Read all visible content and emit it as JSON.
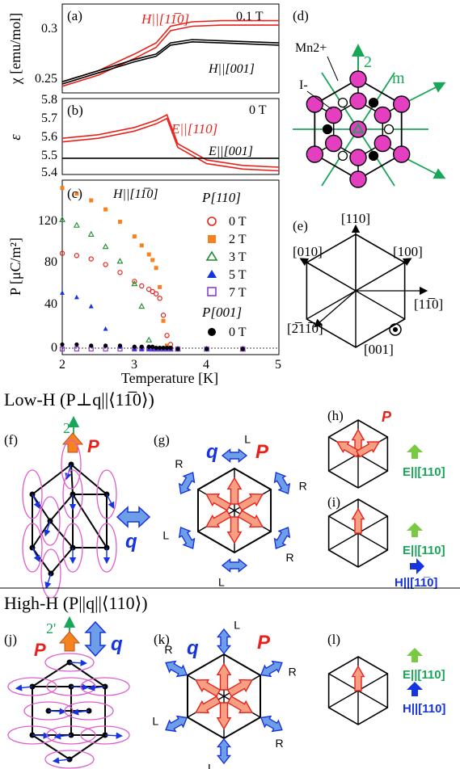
{
  "panels": {
    "a": {
      "label": "(a)",
      "field": "0.1 T",
      "h_inplane": "H||[11̅0]",
      "h_axis": "H||[001]",
      "ylabel": "χ [emu/mol]",
      "yticks": [
        "0.3",
        "0.25"
      ]
    },
    "b": {
      "label": "(b)",
      "field": "0 T",
      "e_inplane": "E||[110]",
      "e_axis": "E||[001]",
      "ylabel": "ε",
      "yticks": [
        "5.8",
        "5.7",
        "5.6",
        "5.5",
        "5.4"
      ]
    },
    "c": {
      "label": "(c)",
      "hdir": "H||[11̅0]",
      "ylabel": "P [μC/m²]",
      "yticks": [
        "120",
        "80",
        "40",
        "0"
      ],
      "xticks": [
        "2",
        "3",
        "4",
        "5"
      ],
      "xlabel": "Temperature [K]",
      "legend": {
        "p110": "P[110]",
        "p001": "P[001]",
        "entries": [
          "0 T",
          "2 T",
          "3 T",
          "5 T",
          "7 T"
        ],
        "entry001": "0 T"
      }
    },
    "d": {
      "label": "(d)",
      "mn": "Mn2+",
      "iodine": "I-",
      "two": "2",
      "m": "m"
    },
    "e": {
      "label": "(e)",
      "dirs": [
        "[110]",
        "[010]",
        "[100]",
        "[11̅0]",
        "[2̅11̅0]",
        "[001]"
      ]
    },
    "f": {
      "label": "(f)",
      "two": "2",
      "P": "P",
      "q": "q"
    },
    "g": {
      "label": "(g)",
      "q": "q",
      "P": "P",
      "handed": [
        "L",
        "R",
        "R",
        "L",
        "L",
        "R"
      ]
    },
    "h": {
      "label": "(h)",
      "P": "P",
      "E": "E||[110]"
    },
    "i": {
      "label": "(i)",
      "E": "E||[110]",
      "H": "H||[11̅0]"
    },
    "j": {
      "label": "(j)",
      "two": "2'",
      "P": "P",
      "q": "q"
    },
    "k": {
      "label": "(k)",
      "q": "q",
      "P": "P",
      "handed": [
        "L",
        "R",
        "R",
        "L",
        "L",
        "R"
      ]
    },
    "l": {
      "label": "(l)",
      "E": "E||[110]",
      "H": "H||[110]"
    }
  },
  "sections": {
    "low": "Low-H (P⊥q||⟨11̅0⟩)",
    "high": "High-H (P||q||⟨110⟩)"
  },
  "colors": {
    "red": "#e8221b",
    "orange": "#f5821f",
    "green": "#1c8b2e",
    "blue": "#1533e0",
    "purple": "#8a3ed6",
    "magenta": "#e43fc0",
    "teal": "#1aa659",
    "salmon": "#f79f83",
    "lightblue": "#6f9ee8"
  },
  "chart_data": [
    {
      "panel": "a",
      "type": "line",
      "ylabel": "χ [emu/mol]",
      "xlim": [
        2,
        5
      ],
      "ylim": [
        0.235,
        0.315
      ],
      "series": [
        {
          "name": "H||[11̅0]",
          "x": [
            2,
            2.5,
            3,
            3.3,
            3.5,
            3.8,
            4.2,
            5
          ],
          "values": [
            0.245,
            0.255,
            0.27,
            0.28,
            0.295,
            0.299,
            0.3,
            0.3
          ]
        },
        {
          "name": "H||[001]",
          "x": [
            2,
            2.5,
            3,
            3.3,
            3.5,
            3.8,
            4.2,
            5
          ],
          "values": [
            0.245,
            0.255,
            0.265,
            0.27,
            0.28,
            0.283,
            0.282,
            0.28
          ]
        }
      ]
    },
    {
      "panel": "b",
      "type": "line",
      "ylabel": "ε",
      "xlim": [
        2,
        5
      ],
      "ylim": [
        5.38,
        5.8
      ],
      "series": [
        {
          "name": "E||[110]",
          "x": [
            2,
            2.5,
            3,
            3.3,
            3.45,
            3.6,
            4,
            4.5,
            5
          ],
          "values": [
            5.58,
            5.6,
            5.64,
            5.68,
            5.71,
            5.55,
            5.46,
            5.43,
            5.42
          ]
        },
        {
          "name": "E||[001]",
          "x": [
            2,
            3,
            4,
            5
          ],
          "values": [
            5.47,
            5.47,
            5.47,
            5.47
          ]
        }
      ]
    },
    {
      "panel": "c",
      "type": "scatter",
      "xlabel": "Temperature [K]",
      "ylabel": "P [μC/m²]",
      "xlim": [
        2,
        5
      ],
      "ylim": [
        -5,
        150
      ],
      "x": [
        2.0,
        2.2,
        2.4,
        2.6,
        2.8,
        3.0,
        3.1,
        3.2,
        3.25,
        3.3,
        3.35,
        3.4,
        3.45,
        3.5,
        3.6,
        4.0,
        4.5
      ],
      "series": [
        {
          "name": "0 T",
          "values": [
            85,
            83,
            80,
            75,
            68,
            60,
            56,
            53,
            51,
            49,
            45,
            30,
            12,
            4,
            0,
            0,
            0
          ]
        },
        {
          "name": "2 T",
          "values": [
            143,
            138,
            132,
            124,
            113,
            100,
            92,
            84,
            79,
            72,
            55,
            25,
            3,
            0,
            0,
            0,
            0
          ]
        },
        {
          "name": "3 T",
          "values": [
            115,
            110,
            102,
            91,
            78,
            58,
            38,
            8,
            0,
            0,
            0,
            0,
            0,
            0,
            0,
            0,
            0
          ]
        },
        {
          "name": "5 T",
          "values": [
            50,
            46,
            38,
            18,
            2,
            0,
            0,
            0,
            0,
            0,
            0,
            0,
            0,
            0,
            0,
            0,
            0
          ]
        },
        {
          "name": "7 T",
          "values": [
            0,
            0,
            0,
            0,
            0,
            0,
            0,
            0,
            0,
            0,
            0,
            0,
            0,
            0,
            0,
            0,
            0
          ]
        },
        {
          "name": "0 T (P[001])",
          "values": [
            4,
            4,
            3,
            3,
            3,
            2,
            2,
            2,
            2,
            1,
            1,
            1,
            1,
            1,
            0,
            0,
            0
          ]
        }
      ]
    }
  ]
}
